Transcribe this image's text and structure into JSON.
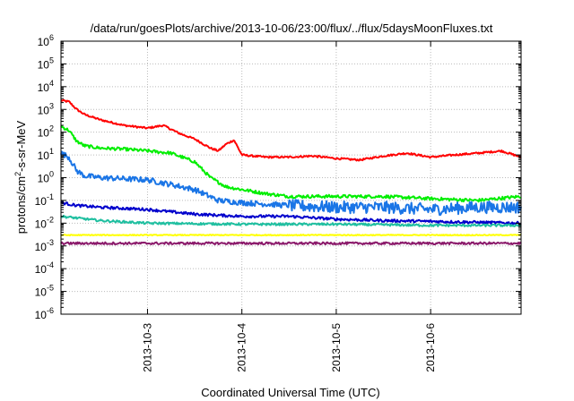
{
  "chart_data": {
    "type": "line",
    "title": "/data/run/goesPlots/archive/2013-10-06/23:00/flux/../flux/5daysMoonFluxes.txt",
    "xlabel": "Coordinated Universal Time (UTC)",
    "ylabel": "protons/cm2-s-sr-MeV",
    "y_scale": "log",
    "ylim": [
      1e-06,
      1000000.0
    ],
    "xlim": [
      "2013-10-02 02:00",
      "2013-10-06 23:00"
    ],
    "y_ticks": [
      {
        "value": 1e-06,
        "base": "10",
        "exp": "-6"
      },
      {
        "value": 1e-05,
        "base": "10",
        "exp": "-5"
      },
      {
        "value": 0.0001,
        "base": "10",
        "exp": "-4"
      },
      {
        "value": 0.001,
        "base": "10",
        "exp": "-3"
      },
      {
        "value": 0.01,
        "base": "10",
        "exp": "-2"
      },
      {
        "value": 0.1,
        "base": "10",
        "exp": "-1"
      },
      {
        "value": 1.0,
        "base": "10",
        "exp": "0"
      },
      {
        "value": 10.0,
        "base": "10",
        "exp": "1"
      },
      {
        "value": 100.0,
        "base": "10",
        "exp": "2"
      },
      {
        "value": 1000.0,
        "base": "10",
        "exp": "3"
      },
      {
        "value": 10000.0,
        "base": "10",
        "exp": "4"
      },
      {
        "value": 100000.0,
        "base": "10",
        "exp": "5"
      },
      {
        "value": 1000000.0,
        "base": "10",
        "exp": "6"
      }
    ],
    "x_ticks": [
      {
        "value": "2013-10-03",
        "label": "2013-10-3"
      },
      {
        "value": "2013-10-04",
        "label": "2013-10-4"
      },
      {
        "value": "2013-10-05",
        "label": "2013-10-5"
      },
      {
        "value": "2013-10-06",
        "label": "2013-10-6"
      }
    ],
    "grid": true,
    "series": [
      {
        "color": "#ff0000",
        "noise": 0.04,
        "points": [
          [
            "2013-10-02 02:00",
            2500
          ],
          [
            "2013-10-02 04:00",
            2200
          ],
          [
            "2013-10-02 06:00",
            1000
          ],
          [
            "2013-10-02 08:00",
            600
          ],
          [
            "2013-10-02 12:00",
            350
          ],
          [
            "2013-10-02 18:00",
            200
          ],
          [
            "2013-10-03 00:00",
            150
          ],
          [
            "2013-10-03 04:00",
            200
          ],
          [
            "2013-10-03 08:00",
            90
          ],
          [
            "2013-10-03 12:00",
            50
          ],
          [
            "2013-10-03 16:00",
            20
          ],
          [
            "2013-10-03 18:00",
            15
          ],
          [
            "2013-10-03 20:00",
            30
          ],
          [
            "2013-10-03 22:00",
            45
          ],
          [
            "2013-10-04 00:00",
            10
          ],
          [
            "2013-10-04 06:00",
            8
          ],
          [
            "2013-10-04 12:00",
            8
          ],
          [
            "2013-10-04 18:00",
            9
          ],
          [
            "2013-10-05 00:00",
            7
          ],
          [
            "2013-10-05 06:00",
            6
          ],
          [
            "2013-10-05 12:00",
            9
          ],
          [
            "2013-10-05 18:00",
            12
          ],
          [
            "2013-10-06 00:00",
            8
          ],
          [
            "2013-10-06 06:00",
            10
          ],
          [
            "2013-10-06 12:00",
            12
          ],
          [
            "2013-10-06 18:00",
            15
          ],
          [
            "2013-10-06 23:00",
            8
          ]
        ]
      },
      {
        "color": "#00ee00",
        "noise": 0.07,
        "points": [
          [
            "2013-10-02 02:00",
            180
          ],
          [
            "2013-10-02 04:00",
            120
          ],
          [
            "2013-10-02 06:00",
            40
          ],
          [
            "2013-10-02 08:00",
            25
          ],
          [
            "2013-10-02 12:00",
            20
          ],
          [
            "2013-10-02 18:00",
            18
          ],
          [
            "2013-10-03 00:00",
            15
          ],
          [
            "2013-10-03 06:00",
            12
          ],
          [
            "2013-10-03 12:00",
            5
          ],
          [
            "2013-10-03 16:00",
            1
          ],
          [
            "2013-10-03 20:00",
            0.4
          ],
          [
            "2013-10-04 00:00",
            0.3
          ],
          [
            "2013-10-04 06:00",
            0.2
          ],
          [
            "2013-10-04 12:00",
            0.15
          ],
          [
            "2013-10-05 00:00",
            0.15
          ],
          [
            "2013-10-05 12:00",
            0.15
          ],
          [
            "2013-10-06 00:00",
            0.12
          ],
          [
            "2013-10-06 12:00",
            0.1
          ],
          [
            "2013-10-06 23:00",
            0.15
          ]
        ]
      },
      {
        "color": "#1a75e6",
        "noise": 0.12,
        "points": [
          [
            "2013-10-02 02:00",
            12
          ],
          [
            "2013-10-02 04:00",
            8
          ],
          [
            "2013-10-02 06:00",
            2
          ],
          [
            "2013-10-02 08:00",
            1.2
          ],
          [
            "2013-10-02 12:00",
            1
          ],
          [
            "2013-10-03 00:00",
            0.8
          ],
          [
            "2013-10-03 06:00",
            0.5
          ],
          [
            "2013-10-03 12:00",
            0.3
          ],
          [
            "2013-10-03 18:00",
            0.1
          ],
          [
            "2013-10-04 00:00",
            0.08
          ],
          [
            "2013-10-04 12:00",
            0.06
          ],
          [
            "2013-10-05 00:00",
            0.05
          ],
          [
            "2013-10-05 12:00",
            0.05
          ],
          [
            "2013-10-06 00:00",
            0.04
          ],
          [
            "2013-10-06 12:00",
            0.05
          ],
          [
            "2013-10-06 23:00",
            0.05
          ]
        ]
      },
      {
        "color": "#0000cc",
        "noise": 0.06,
        "points": [
          [
            "2013-10-02 02:00",
            0.08
          ],
          [
            "2013-10-02 06:00",
            0.06
          ],
          [
            "2013-10-02 12:00",
            0.05
          ],
          [
            "2013-10-03 00:00",
            0.04
          ],
          [
            "2013-10-03 12:00",
            0.025
          ],
          [
            "2013-10-04 00:00",
            0.02
          ],
          [
            "2013-10-04 12:00",
            0.02
          ],
          [
            "2013-10-05 00:00",
            0.015
          ],
          [
            "2013-10-05 12:00",
            0.013
          ],
          [
            "2013-10-06 00:00",
            0.012
          ],
          [
            "2013-10-06 23:00",
            0.01
          ]
        ]
      },
      {
        "color": "#1fbfa0",
        "noise": 0.05,
        "points": [
          [
            "2013-10-02 02:00",
            0.02
          ],
          [
            "2013-10-02 12:00",
            0.013
          ],
          [
            "2013-10-03 00:00",
            0.01
          ],
          [
            "2013-10-04 00:00",
            0.009
          ],
          [
            "2013-10-05 00:00",
            0.009
          ],
          [
            "2013-10-06 00:00",
            0.008
          ],
          [
            "2013-10-06 23:00",
            0.008
          ]
        ]
      },
      {
        "color": "#ffff00",
        "noise": 0.02,
        "points": [
          [
            "2013-10-02 02:00",
            0.003
          ],
          [
            "2013-10-04 00:00",
            0.003
          ],
          [
            "2013-10-06 23:00",
            0.003
          ]
        ]
      },
      {
        "color": "#8b1a6b",
        "noise": 0.05,
        "points": [
          [
            "2013-10-02 02:00",
            0.0013
          ],
          [
            "2013-10-04 00:00",
            0.0013
          ],
          [
            "2013-10-06 23:00",
            0.0013
          ]
        ]
      }
    ]
  }
}
